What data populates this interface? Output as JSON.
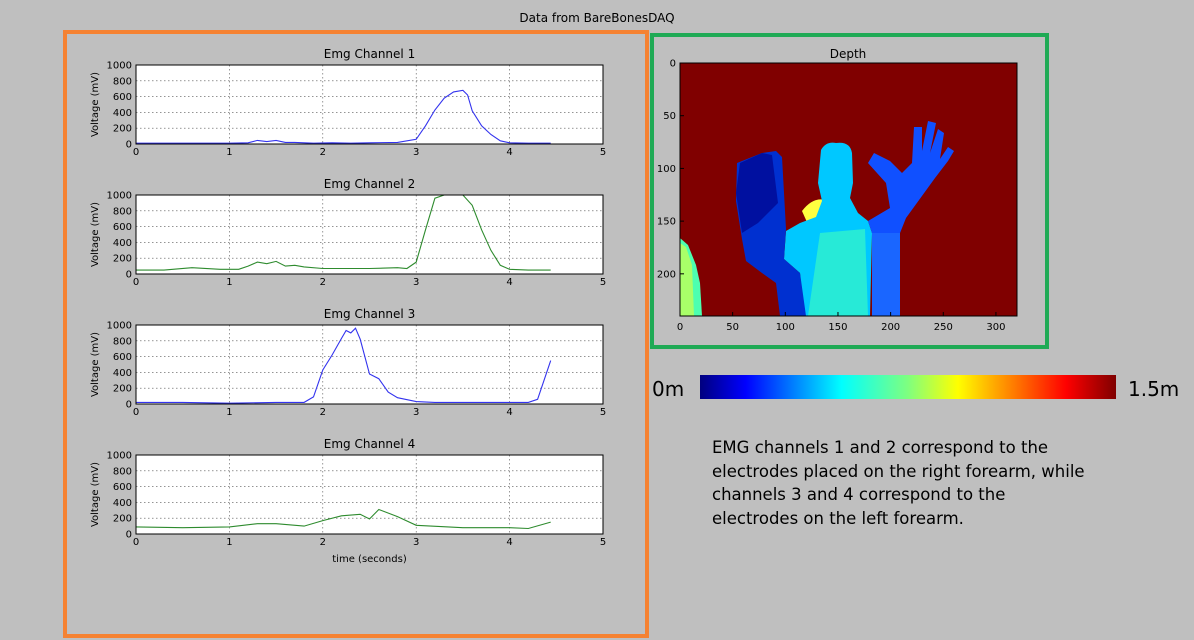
{
  "figure": {
    "title": "Data from BareBonesDAQ"
  },
  "colorbar": {
    "min_label": "0m",
    "max_label": "1.5m"
  },
  "note": "EMG channels 1 and 2 correspond to the electrodes placed on the right forearm, while channels 3 and 4 correspond to the electrodes on the left forearm.",
  "colors": {
    "emg_frame": "#f58232",
    "depth_frame": "#1faa55",
    "blue_series": "#3333ee",
    "green_series": "#2e8b2e"
  },
  "chart_data": [
    {
      "type": "line",
      "title": "Emg Channel 1",
      "ylabel": "Voltage (mV)",
      "xlabel": "",
      "xlim": [
        0,
        5
      ],
      "ylim": [
        0,
        1000
      ],
      "xticks": [
        0,
        1,
        2,
        3,
        4,
        5
      ],
      "yticks": [
        0,
        200,
        400,
        600,
        800,
        1000
      ],
      "grid": true,
      "color": "#3333ee",
      "x": [
        0,
        0.5,
        1,
        1.2,
        1.3,
        1.4,
        1.5,
        1.6,
        1.7,
        1.9,
        2.1,
        2.3,
        2.5,
        2.8,
        3.0,
        3.1,
        3.2,
        3.3,
        3.4,
        3.5,
        3.55,
        3.6,
        3.7,
        3.8,
        3.9,
        4.0,
        4.2,
        4.44
      ],
      "y": [
        10,
        10,
        10,
        15,
        45,
        30,
        45,
        20,
        20,
        10,
        15,
        10,
        15,
        20,
        60,
        230,
        430,
        580,
        660,
        680,
        620,
        420,
        230,
        120,
        40,
        15,
        10,
        10
      ]
    },
    {
      "type": "line",
      "title": "Emg Channel 2",
      "ylabel": "Voltage (mV)",
      "xlabel": "",
      "xlim": [
        0,
        5
      ],
      "ylim": [
        0,
        1000
      ],
      "xticks": [
        0,
        1,
        2,
        3,
        4,
        5
      ],
      "yticks": [
        0,
        200,
        400,
        600,
        800,
        1000
      ],
      "grid": true,
      "color": "#2e8b2e",
      "x": [
        0,
        0.3,
        0.6,
        0.9,
        1.1,
        1.2,
        1.3,
        1.4,
        1.5,
        1.6,
        1.7,
        1.8,
        2.0,
        2.5,
        2.8,
        2.9,
        3.0,
        3.1,
        3.2,
        3.3,
        3.4,
        3.5,
        3.6,
        3.7,
        3.8,
        3.9,
        4.0,
        4.2,
        4.44
      ],
      "y": [
        50,
        50,
        80,
        60,
        60,
        100,
        150,
        130,
        160,
        100,
        110,
        90,
        70,
        70,
        80,
        70,
        150,
        560,
        960,
        1000,
        1000,
        1000,
        870,
        560,
        300,
        110,
        60,
        50,
        50
      ]
    },
    {
      "type": "line",
      "title": "Emg Channel 3",
      "ylabel": "Voltage (mV)",
      "xlabel": "",
      "xlim": [
        0,
        5
      ],
      "ylim": [
        0,
        1000
      ],
      "xticks": [
        0,
        1,
        2,
        3,
        4,
        5
      ],
      "yticks": [
        0,
        200,
        400,
        600,
        800,
        1000
      ],
      "grid": true,
      "color": "#3333ee",
      "x": [
        0,
        0.5,
        1,
        1.5,
        1.8,
        1.9,
        2.0,
        2.1,
        2.2,
        2.25,
        2.3,
        2.35,
        2.4,
        2.5,
        2.6,
        2.7,
        2.8,
        3.0,
        3.2,
        3.5,
        4.0,
        4.2,
        4.3,
        4.44
      ],
      "y": [
        20,
        20,
        10,
        20,
        20,
        90,
        430,
        620,
        830,
        930,
        900,
        960,
        820,
        380,
        320,
        150,
        80,
        30,
        20,
        20,
        20,
        20,
        60,
        550
      ]
    },
    {
      "type": "line",
      "title": "Emg Channel 4",
      "ylabel": "Voltage (mV)",
      "xlabel": "time  (seconds)",
      "xlim": [
        0,
        5
      ],
      "ylim": [
        0,
        1000
      ],
      "xticks": [
        0,
        1,
        2,
        3,
        4,
        5
      ],
      "yticks": [
        0,
        200,
        400,
        600,
        800,
        1000
      ],
      "grid": true,
      "color": "#2e8b2e",
      "x": [
        0,
        0.5,
        1,
        1.3,
        1.5,
        1.8,
        2.0,
        2.2,
        2.4,
        2.5,
        2.6,
        2.8,
        3.0,
        3.5,
        4.0,
        4.2,
        4.44
      ],
      "y": [
        90,
        80,
        90,
        130,
        130,
        100,
        170,
        230,
        250,
        190,
        310,
        220,
        110,
        80,
        80,
        70,
        150
      ]
    },
    {
      "type": "heatmap",
      "title": "Depth",
      "xlabel": "",
      "ylabel": "",
      "xlim": [
        0,
        320
      ],
      "ylim": [
        240,
        0
      ],
      "xticks": [
        0,
        50,
        100,
        150,
        200,
        250,
        300
      ],
      "yticks": [
        0,
        50,
        100,
        150,
        200
      ],
      "colormap": "jet",
      "colorbar_range": [
        "0m",
        "1.5m"
      ],
      "description_regions": [
        "background ~1.5m (dark red)",
        "person torso ~0.6m (cyan)",
        "left hand ~0.2m (dark blue)",
        "right raised hand ~0.25m (blue)"
      ]
    }
  ]
}
